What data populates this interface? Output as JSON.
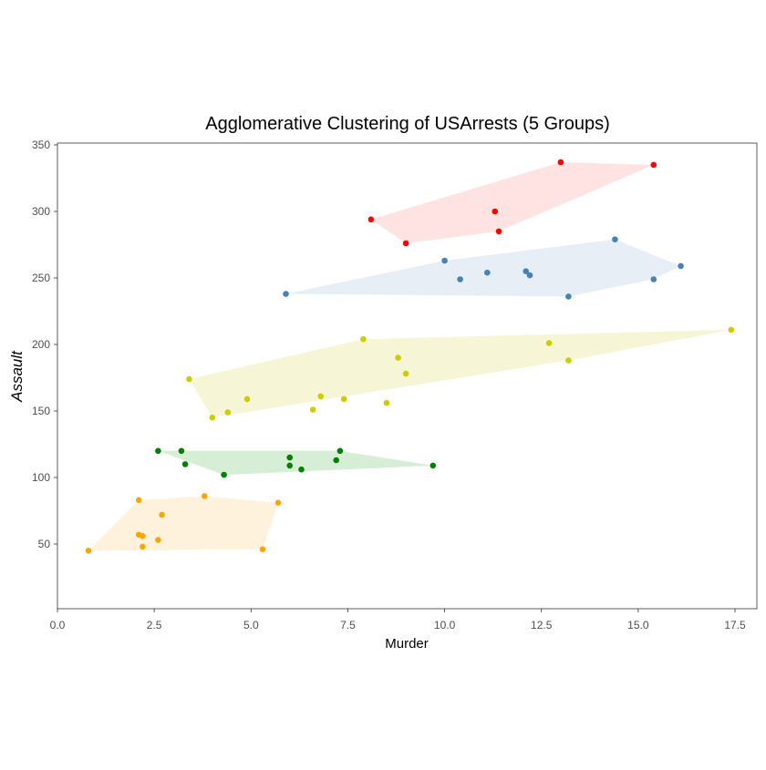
{
  "chart_data": {
    "type": "scatter",
    "title": "Agglomerative Clustering of USArrests (5 Groups)",
    "xlabel": "Murder",
    "ylabel": "Assault",
    "xlim": [
      0,
      18
    ],
    "ylim": [
      0,
      350
    ],
    "x_ticks": [
      0,
      2.5,
      5,
      7.5,
      10,
      12.5,
      15,
      17.5
    ],
    "x_tick_labels": [
      "0.0",
      "2.5",
      "5.0",
      "7.5",
      "10.0",
      "12.5",
      "15.0",
      "17.5"
    ],
    "y_ticks": [
      50,
      100,
      150,
      200,
      250,
      300,
      350
    ],
    "y_tick_labels": [
      "50",
      "100",
      "150",
      "200",
      "250",
      "300",
      "350"
    ],
    "grid": false,
    "legend": false,
    "hull_opacity": 0.27,
    "series": [
      {
        "point_color": "#ff0000",
        "hull_color": "#ff9999",
        "points": [
          [
            13.0,
            337
          ],
          [
            15.4,
            335
          ],
          [
            8.1,
            294
          ],
          [
            11.3,
            300
          ],
          [
            9.0,
            276
          ],
          [
            11.4,
            285
          ]
        ],
        "hull": [
          [
            8.1,
            294
          ],
          [
            13.0,
            337
          ],
          [
            15.4,
            335
          ],
          [
            11.4,
            285
          ],
          [
            9.0,
            276
          ]
        ]
      },
      {
        "point_color": "#4682b4",
        "hull_color": "#a6c2dc",
        "points": [
          [
            14.4,
            279
          ],
          [
            16.1,
            259
          ],
          [
            15.4,
            249
          ],
          [
            13.2,
            236
          ],
          [
            5.9,
            238
          ],
          [
            10.0,
            263
          ],
          [
            10.4,
            249
          ],
          [
            11.1,
            254
          ],
          [
            12.1,
            255
          ],
          [
            12.2,
            252
          ]
        ],
        "hull": [
          [
            5.9,
            238
          ],
          [
            10.0,
            263
          ],
          [
            14.4,
            279
          ],
          [
            16.1,
            259
          ],
          [
            15.4,
            249
          ],
          [
            13.2,
            236
          ]
        ]
      },
      {
        "point_color": "#cccc00",
        "hull_color": "#dddd66",
        "points": [
          [
            17.4,
            211
          ],
          [
            7.9,
            204
          ],
          [
            12.7,
            201
          ],
          [
            8.8,
            190
          ],
          [
            13.2,
            188
          ],
          [
            9.0,
            178
          ],
          [
            3.4,
            174
          ],
          [
            6.8,
            161
          ],
          [
            4.9,
            159
          ],
          [
            7.4,
            159
          ],
          [
            8.5,
            156
          ],
          [
            6.6,
            151
          ],
          [
            4.4,
            149
          ],
          [
            4.0,
            145
          ]
        ],
        "hull": [
          [
            3.4,
            174
          ],
          [
            7.9,
            204
          ],
          [
            17.4,
            211
          ],
          [
            13.2,
            188
          ],
          [
            4.0,
            145
          ]
        ]
      },
      {
        "point_color": "#008000",
        "hull_color": "#66bb66",
        "points": [
          [
            2.6,
            120
          ],
          [
            3.2,
            120
          ],
          [
            7.3,
            120
          ],
          [
            6.0,
            115
          ],
          [
            7.2,
            113
          ],
          [
            3.3,
            110
          ],
          [
            6.0,
            109
          ],
          [
            9.7,
            109
          ],
          [
            6.3,
            106
          ],
          [
            4.3,
            102
          ]
        ],
        "hull": [
          [
            2.6,
            120
          ],
          [
            7.3,
            120
          ],
          [
            9.7,
            109
          ],
          [
            4.3,
            102
          ]
        ]
      },
      {
        "point_color": "#ffa500",
        "hull_color": "#ffd080",
        "points": [
          [
            3.8,
            86
          ],
          [
            2.1,
            83
          ],
          [
            5.7,
            81
          ],
          [
            2.7,
            72
          ],
          [
            2.1,
            57
          ],
          [
            2.2,
            56
          ],
          [
            2.6,
            53
          ],
          [
            2.2,
            48
          ],
          [
            0.8,
            45
          ],
          [
            5.3,
            46
          ]
        ],
        "hull": [
          [
            0.8,
            45
          ],
          [
            2.1,
            83
          ],
          [
            3.8,
            86
          ],
          [
            5.7,
            81
          ],
          [
            5.3,
            46
          ]
        ]
      }
    ]
  }
}
